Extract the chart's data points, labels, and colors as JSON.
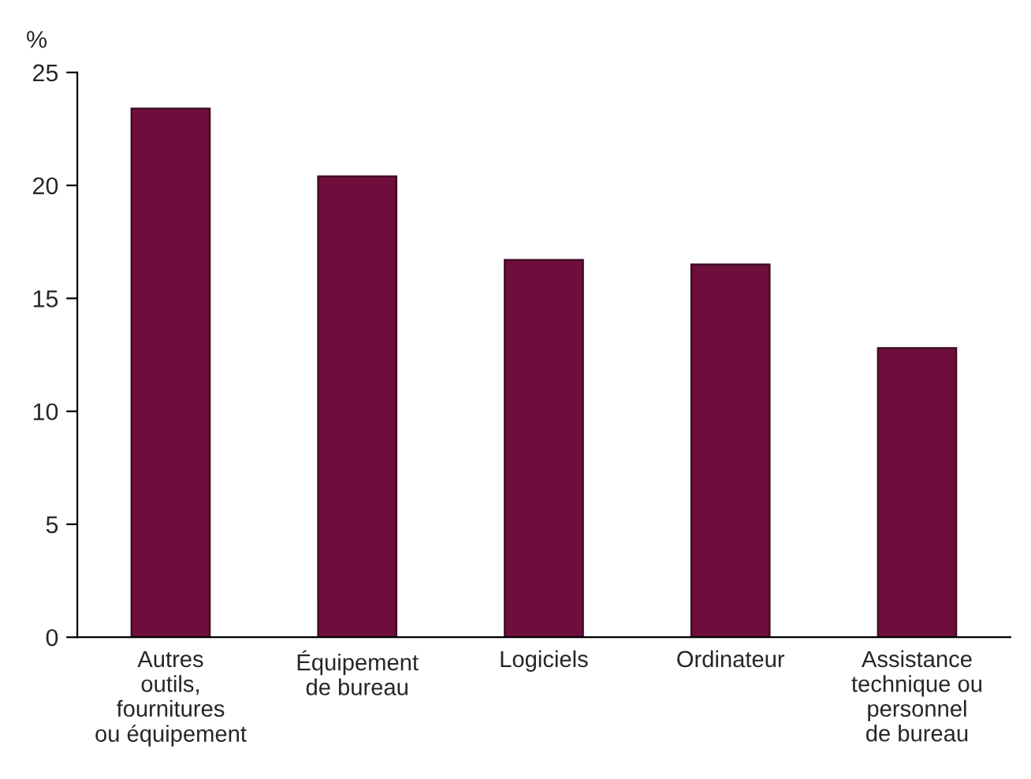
{
  "chart_data": {
    "type": "bar",
    "ylabel": "%",
    "categories": [
      "Autres\noutils,\nfournitures\nou équipement",
      "Équipement\nde bureau",
      "Logiciels",
      "Ordinateur",
      "Assistance\ntechnique ou\npersonnel\nde bureau"
    ],
    "values": [
      23.4,
      20.4,
      16.7,
      16.5,
      12.8
    ],
    "color": "#6e0e3c",
    "ylim": [
      0,
      25
    ],
    "yticks": [
      0,
      5,
      10,
      15,
      20,
      25
    ],
    "grid": false,
    "legend": false
  }
}
